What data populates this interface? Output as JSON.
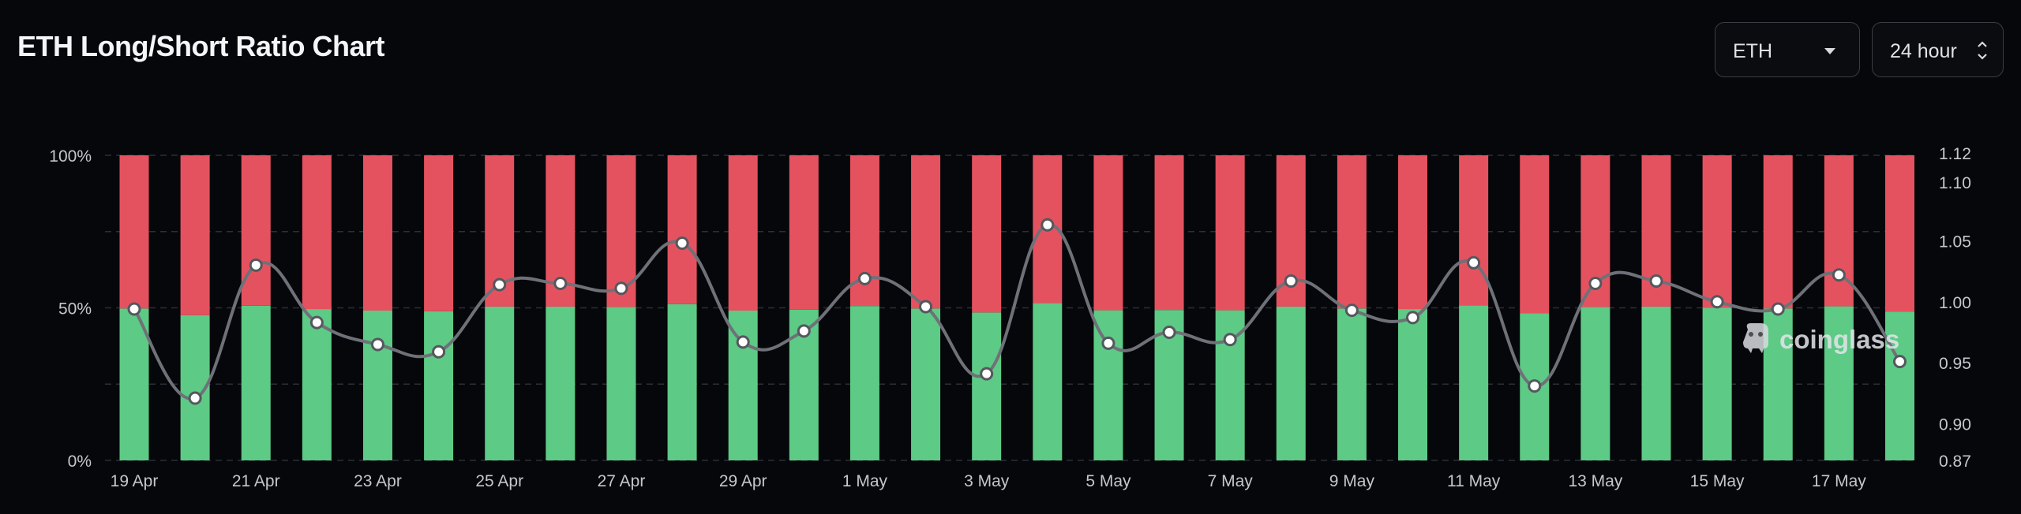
{
  "title": "ETH Long/Short Ratio Chart",
  "controls": {
    "coin": "ETH",
    "interval": "24 hour"
  },
  "watermark": "coinglass",
  "colors": {
    "long": "#5dca86",
    "short": "#e5525f",
    "ratio_line": "#6f7178",
    "background": "#06070b"
  },
  "chart_data": {
    "type": "bar",
    "stacked": true,
    "categories": [
      "19 Apr",
      "20 Apr",
      "21 Apr",
      "22 Apr",
      "23 Apr",
      "24 Apr",
      "25 Apr",
      "26 Apr",
      "27 Apr",
      "28 Apr",
      "29 Apr",
      "30 Apr",
      "1 May",
      "2 May",
      "3 May",
      "4 May",
      "5 May",
      "6 May",
      "7 May",
      "8 May",
      "9 May",
      "10 May",
      "11 May",
      "12 May",
      "13 May",
      "14 May",
      "15 May",
      "16 May",
      "17 May",
      "18 May"
    ],
    "x_tick_labels": [
      "19 Apr",
      "21 Apr",
      "23 Apr",
      "25 Apr",
      "27 Apr",
      "29 Apr",
      "1 May",
      "3 May",
      "5 May",
      "7 May",
      "9 May",
      "11 May",
      "13 May",
      "15 May",
      "17 May"
    ],
    "series": [
      {
        "key": "long",
        "values": [
          49.8,
          47.6,
          50.7,
          49.6,
          49.1,
          48.9,
          50.4,
          50.4,
          50.3,
          51.2,
          49.1,
          49.4,
          50.6,
          49.8,
          48.5,
          51.6,
          49.2,
          49.3,
          49.2,
          50.4,
          49.8,
          49.6,
          50.8,
          48.2,
          50.3,
          50.4,
          50.0,
          49.8,
          50.5,
          48.8
        ]
      },
      {
        "key": "short",
        "values": [
          50.2,
          52.4,
          49.3,
          50.4,
          50.9,
          51.1,
          49.6,
          49.6,
          49.7,
          48.8,
          50.9,
          50.6,
          49.4,
          50.2,
          51.5,
          48.4,
          50.8,
          50.7,
          50.8,
          49.6,
          50.2,
          50.4,
          49.2,
          51.8,
          49.7,
          49.6,
          50.0,
          50.2,
          49.5,
          51.2
        ]
      },
      {
        "key": "ratio",
        "axis": "right",
        "type": "line",
        "values": [
          0.994,
          0.921,
          1.03,
          0.983,
          0.965,
          0.959,
          1.014,
          1.015,
          1.011,
          1.048,
          0.967,
          0.976,
          1.019,
          0.996,
          0.941,
          1.063,
          0.966,
          0.975,
          0.969,
          1.017,
          0.993,
          0.987,
          1.032,
          0.931,
          1.015,
          1.017,
          1.0,
          0.994,
          1.022,
          0.951
        ]
      }
    ],
    "y_left": {
      "range": [
        0,
        100
      ],
      "ticks": [
        "0%",
        "50%",
        "100%"
      ]
    },
    "y_right": {
      "range": [
        0.87,
        1.12
      ],
      "ticks": [
        "0.87",
        "0.90",
        "0.95",
        "1.00",
        "1.05",
        "1.10",
        "1.12"
      ]
    },
    "grid": true,
    "legend": "none"
  }
}
